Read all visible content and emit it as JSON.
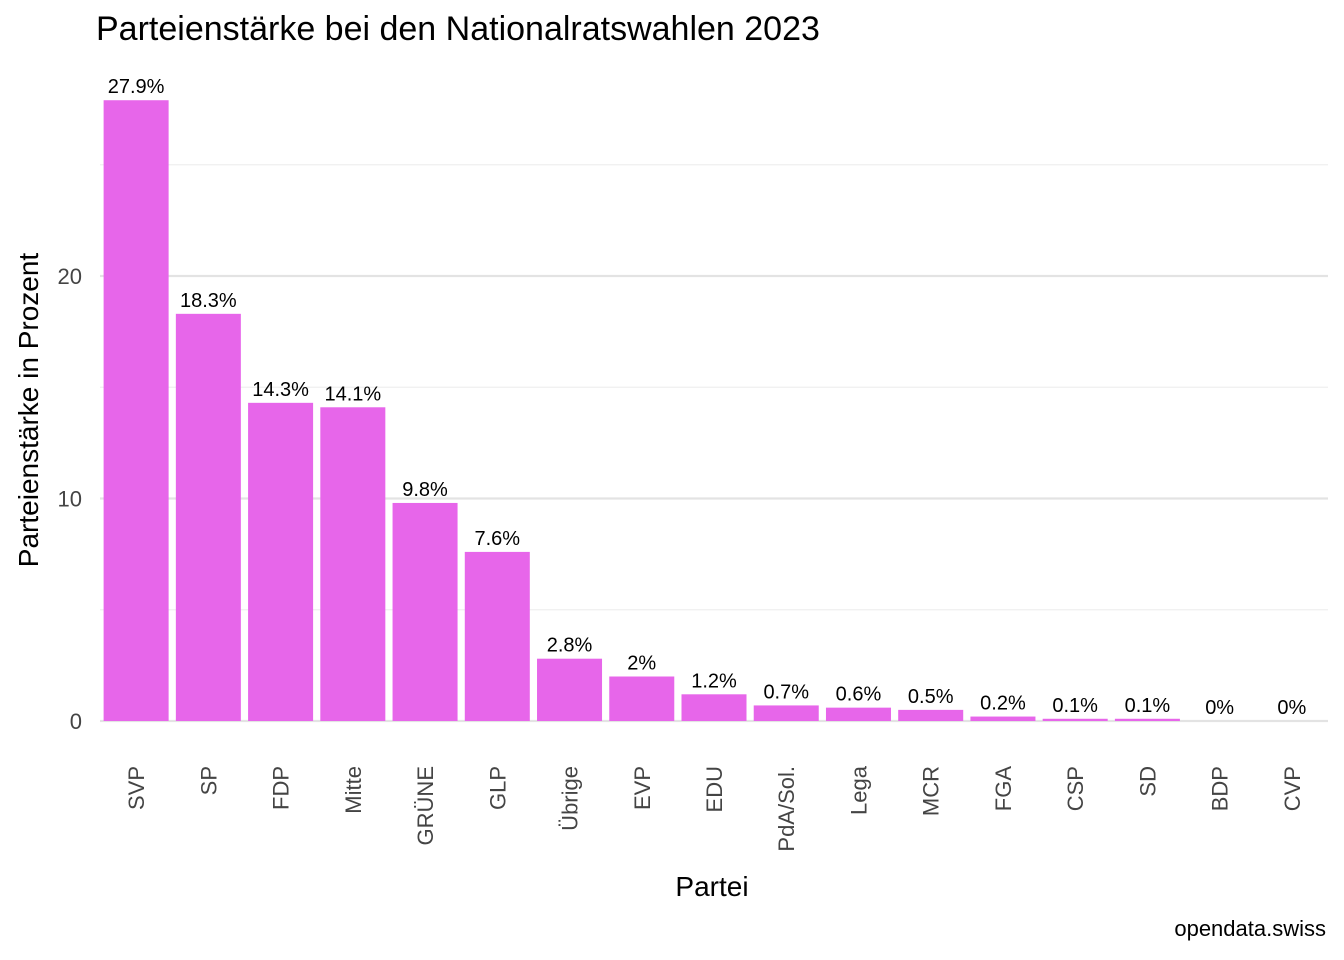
{
  "chart_data": {
    "type": "bar",
    "title": "Parteienstärke bei den Nationalratswahlen 2023",
    "xlabel": "Partei",
    "ylabel": "Parteienstärke in Prozent",
    "caption": "opendata.swiss",
    "categories": [
      "SVP",
      "SP",
      "FDP",
      "Mitte",
      "GRÜNE",
      "GLP",
      "Übrige",
      "EVP",
      "EDU",
      "PdA/Sol.",
      "Lega",
      "MCR",
      "FGA",
      "CSP",
      "SD",
      "BDP",
      "CVP"
    ],
    "values": [
      27.9,
      18.3,
      14.3,
      14.1,
      9.8,
      7.6,
      2.8,
      2.0,
      1.2,
      0.7,
      0.6,
      0.5,
      0.2,
      0.1,
      0.1,
      0,
      0
    ],
    "value_labels": [
      "27.9%",
      "18.3%",
      "14.3%",
      "14.1%",
      "9.8%",
      "7.6%",
      "2.8%",
      "2%",
      "1.2%",
      "0.7%",
      "0.6%",
      "0.5%",
      "0.2%",
      "0.1%",
      "0.1%",
      "0%",
      "0%"
    ],
    "yticks": [
      0,
      10,
      20
    ],
    "ytick_labels": [
      "0",
      "10",
      "20"
    ],
    "ylim": [
      0,
      28
    ],
    "bar_color": "#e766ea",
    "grid": true,
    "legend": "none"
  }
}
